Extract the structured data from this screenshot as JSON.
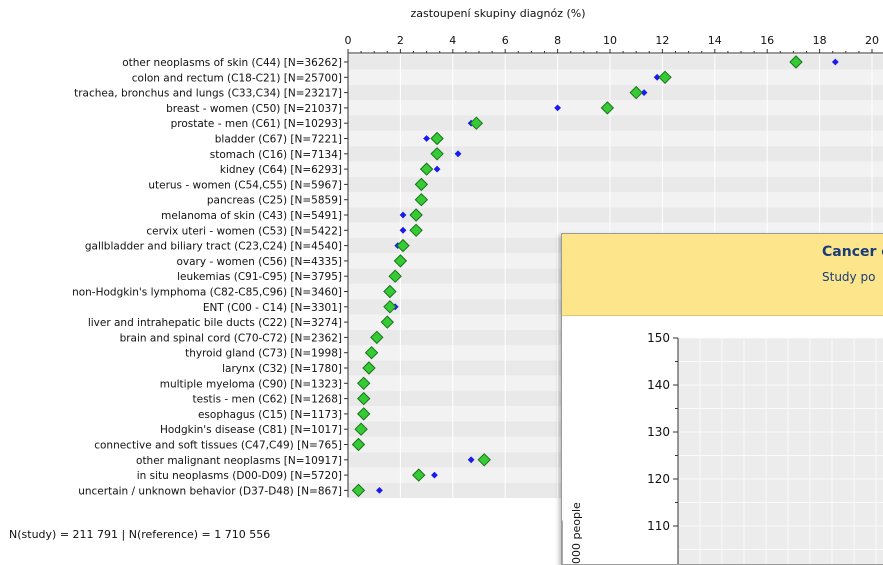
{
  "chart_data": {
    "type": "scatter",
    "orientation": "horizontal",
    "title": "zastoupení skupiny diagnóz (%)",
    "xlim": [
      0,
      20
    ],
    "x_ticks": [
      "0",
      "2",
      "4",
      "6",
      "8",
      "10",
      "12",
      "14",
      "16",
      "18",
      "20"
    ],
    "x_tick_values": [
      0,
      2,
      4,
      6,
      8,
      10,
      12,
      14,
      16,
      18,
      20
    ],
    "series_colors": [
      "#33cc33",
      "#1a1aee"
    ],
    "categories": [
      "other neoplasms of skin (C44)  [N=36262]",
      "colon and rectum (C18-C21)  [N=25700]",
      "trachea, bronchus and lungs (C33,C34)  [N=23217]",
      "breast - women (C50)  [N=21037]",
      "prostate - men (C61)  [N=10293]",
      "bladder (C67)  [N=7221]",
      "stomach (C16)  [N=7134]",
      "kidney (C64)  [N=6293]",
      "uterus - women (C54,C55)  [N=5967]",
      "pancreas (C25)  [N=5859]",
      "melanoma of skin (C43)  [N=5491]",
      "cervix uteri - women (C53)  [N=5422]",
      "gallbladder and biliary tract (C23,C24)  [N=4540]",
      "ovary - women (C56)  [N=4335]",
      "leukemias (C91-C95)  [N=3795]",
      "non-Hodgkin's lymphoma (C82-C85,C96)  [N=3460]",
      "ENT (C00 - C14)  [N=3301]",
      "liver and intrahepatic bile ducts (C22)  [N=3274]",
      "brain and spinal cord (C70-C72)  [N=2362]",
      "thyroid gland (C73)  [N=1998]",
      "larynx (C32)  [N=1780]",
      "multiple myeloma (C90)  [N=1323]",
      "testis - men (C62)  [N=1268]",
      "esophagus (C15)  [N=1173]",
      "Hodgkin's disease (C81)  [N=1017]",
      "connective and soft tissues (C47,C49)  [N=765]",
      "other malignant neoplasms  [N=10917]",
      "in situ neoplasms (D00-D09)  [N=5720]",
      "uncertain / unknown behavior (D37-D48)  [N=867]"
    ],
    "series": [
      {
        "values": [
          17.1,
          12.1,
          11.0,
          9.9,
          4.9,
          3.4,
          3.4,
          3.0,
          2.8,
          2.8,
          2.6,
          2.6,
          2.1,
          2.0,
          1.8,
          1.6,
          1.6,
          1.5,
          1.1,
          0.9,
          0.8,
          0.6,
          0.6,
          0.6,
          0.5,
          0.4,
          5.2,
          2.7,
          0.4
        ]
      },
      {
        "values": [
          18.6,
          11.8,
          11.3,
          8.0,
          4.7,
          3.0,
          4.2,
          3.4,
          2.8,
          2.7,
          2.1,
          2.1,
          1.9,
          2.1,
          1.9,
          1.6,
          1.8,
          1.4,
          1.2,
          1.0,
          0.9,
          0.7,
          0.6,
          0.7,
          0.5,
          0.4,
          4.7,
          3.3,
          1.2
        ]
      }
    ]
  },
  "footer": {
    "summary": "N(study) = 211 791  |  N(reference) = 1 710 556"
  },
  "popup": {
    "title": "Cancer e",
    "subtitle": "Study po",
    "y_axis_label": "000 people",
    "y_ticks": [
      "150",
      "140",
      "130",
      "120",
      "110"
    ],
    "y_tick_values": [
      150,
      140,
      130,
      120,
      110
    ]
  }
}
